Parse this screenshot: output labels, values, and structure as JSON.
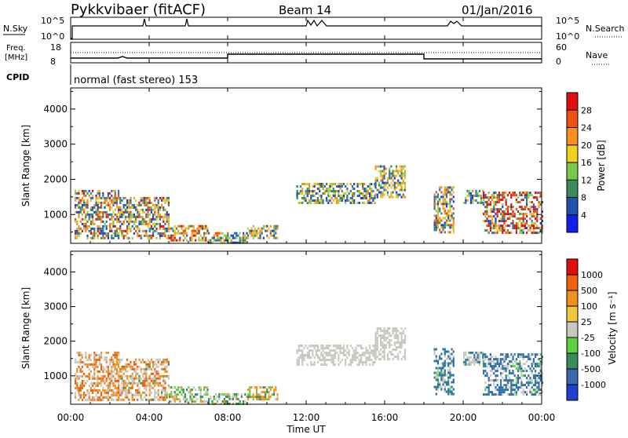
{
  "header": {
    "station": "Pykkvibaer (fitACF)",
    "beam": "Beam 14",
    "date": "01/Jan/2016"
  },
  "top_panels": {
    "nsky_label": "N.Sky",
    "nsky_ticks": [
      "10^5",
      "10^0"
    ],
    "nsearch_label": "N.Search",
    "nsearch_ticks": [
      "10^5",
      "10^0"
    ],
    "freq_label_1": "Freq.",
    "freq_label_2": "[MHz]",
    "freq_ticks": [
      "18",
      "8"
    ],
    "nave_label": "Nave",
    "nave_ticks": [
      "60",
      "0"
    ],
    "cpid_label": "CPID",
    "cpid_text": "normal (fast stereo) 153"
  },
  "chart_data": [
    {
      "type": "heatmap",
      "name": "power",
      "ylabel": "Slant Range [km]",
      "yticks": [
        "4000",
        "3000",
        "2000",
        "1000"
      ],
      "ylim": [
        180,
        4600
      ],
      "colorbar_label": "Power [dB]",
      "colorbar_ticks": [
        "28",
        "24",
        "20",
        "16",
        "12",
        "8",
        "4"
      ],
      "colors": [
        "#1020e8",
        "#2050b0",
        "#3a8a5a",
        "#78c850",
        "#f0d020",
        "#f89020",
        "#f05010",
        "#e01010"
      ],
      "regions": [
        {
          "t": [
            0.2,
            2.4
          ],
          "r": [
            300,
            1700
          ],
          "p": [
            0.3,
            0.2,
            0.35,
            0.1,
            0.05
          ]
        },
        {
          "t": [
            2.4,
            5.0
          ],
          "r": [
            300,
            1500
          ],
          "p": [
            0.25,
            0.2,
            0.4,
            0.1,
            0.05
          ]
        },
        {
          "t": [
            5.0,
            7.0
          ],
          "r": [
            250,
            700
          ],
          "p": [
            0.2,
            0.2,
            0.4,
            0.1,
            0.1
          ]
        },
        {
          "t": [
            7.0,
            9.0
          ],
          "r": [
            200,
            500
          ],
          "p": [
            0.35,
            0.35,
            0.25,
            0.05,
            0
          ]
        },
        {
          "t": [
            9.0,
            10.5
          ],
          "r": [
            300,
            700
          ],
          "p": [
            0.25,
            0.2,
            0.5,
            0.05,
            0
          ]
        },
        {
          "t": [
            11.5,
            15.5
          ],
          "r": [
            1350,
            1900
          ],
          "p": [
            0.3,
            0.35,
            0.35,
            0,
            0
          ]
        },
        {
          "t": [
            15.5,
            17.0
          ],
          "r": [
            1500,
            2400
          ],
          "p": [
            0.25,
            0.25,
            0.5,
            0,
            0
          ]
        },
        {
          "t": [
            18.5,
            19.5
          ],
          "r": [
            500,
            1800
          ],
          "p": [
            0.25,
            0.3,
            0.35,
            0.1,
            0
          ]
        },
        {
          "t": [
            20.0,
            21.0
          ],
          "r": [
            1300,
            1700
          ],
          "p": [
            0.4,
            0.3,
            0.3,
            0,
            0
          ]
        },
        {
          "t": [
            21.0,
            24.0
          ],
          "r": [
            450,
            1650
          ],
          "p": [
            0.15,
            0.2,
            0.2,
            0.2,
            0.25
          ]
        }
      ]
    },
    {
      "type": "heatmap",
      "name": "velocity",
      "ylabel": "Slant Range [km]",
      "yticks": [
        "4000",
        "3000",
        "2000",
        "1000"
      ],
      "ylim": [
        180,
        4600
      ],
      "colorbar_label": "Velocity [m s⁻¹]",
      "colorbar_ticks": [
        "1000",
        "500",
        "100",
        "25",
        "-25",
        "-100",
        "-500",
        "-1000"
      ],
      "colors": [
        "#2040d0",
        "#3a6ab0",
        "#3a8a5a",
        "#60d040",
        "#c8c8c0",
        "#f0c840",
        "#f09020",
        "#f06010",
        "#e01010"
      ],
      "regions": [
        {
          "t": [
            0.2,
            2.4
          ],
          "r": [
            300,
            1700
          ],
          "p": [
            0,
            0,
            0.35,
            0.35,
            0.3
          ]
        },
        {
          "t": [
            2.4,
            5.0
          ],
          "r": [
            300,
            1500
          ],
          "p": [
            0,
            0.05,
            0.45,
            0.3,
            0.2
          ]
        },
        {
          "t": [
            5.0,
            7.0
          ],
          "r": [
            250,
            700
          ],
          "p": [
            0,
            0.5,
            0.3,
            0.2,
            0
          ]
        },
        {
          "t": [
            7.0,
            9.0
          ],
          "r": [
            200,
            500
          ],
          "p": [
            0,
            0.7,
            0.2,
            0.1,
            0
          ]
        },
        {
          "t": [
            9.0,
            10.5
          ],
          "r": [
            300,
            700
          ],
          "p": [
            0,
            0.3,
            0.1,
            0.6,
            0
          ]
        },
        {
          "t": [
            11.5,
            15.5
          ],
          "r": [
            1350,
            1900
          ],
          "p": [
            0,
            0,
            1.0,
            0,
            0
          ]
        },
        {
          "t": [
            15.5,
            17.0
          ],
          "r": [
            1500,
            2400
          ],
          "p": [
            0,
            0,
            1.0,
            0,
            0
          ]
        },
        {
          "t": [
            18.5,
            19.5
          ],
          "r": [
            500,
            1800
          ],
          "p": [
            0.6,
            0.1,
            0.3,
            0,
            0
          ]
        },
        {
          "t": [
            20.0,
            21.0
          ],
          "r": [
            1300,
            1700
          ],
          "p": [
            0.2,
            0.1,
            0.7,
            0,
            0
          ]
        },
        {
          "t": [
            21.0,
            24.0
          ],
          "r": [
            450,
            1650
          ],
          "p": [
            0.6,
            0.1,
            0.3,
            0,
            0
          ]
        }
      ]
    }
  ],
  "time_axis": {
    "ticks": [
      "00:00",
      "04:00",
      "08:00",
      "12:00",
      "16:00",
      "20:00",
      "00:00"
    ],
    "label": "Time UT"
  }
}
